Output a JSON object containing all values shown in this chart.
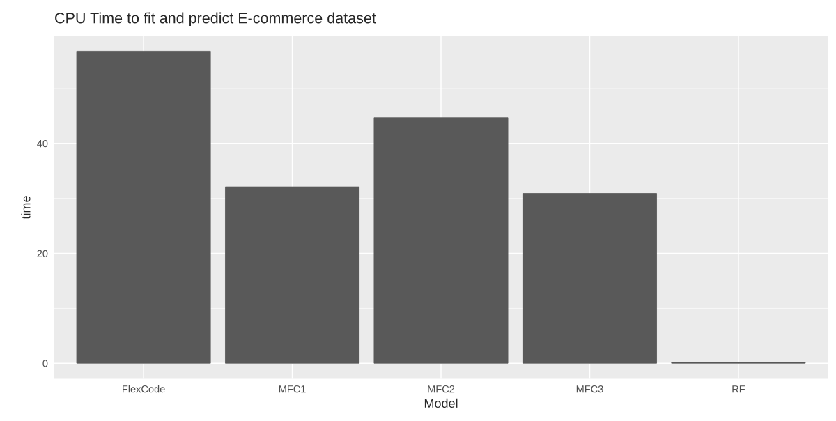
{
  "chart_data": {
    "type": "bar",
    "title": "CPU Time to fit and predict E-commerce dataset",
    "xlabel": "Model",
    "ylabel": "time",
    "categories": [
      "FlexCode",
      "MFC1",
      "MFC2",
      "MFC3",
      "RF"
    ],
    "values": [
      56.8,
      32.1,
      44.7,
      30.9,
      0.2
    ],
    "color": "#595959",
    "ylim": [
      -2.84,
      59.6
    ],
    "yticks": [
      0,
      20,
      40
    ],
    "grid": true
  }
}
